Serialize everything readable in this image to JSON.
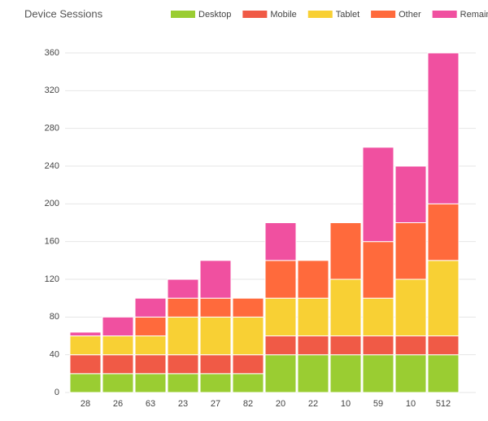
{
  "chart_data": {
    "type": "stacked-bar",
    "title": "Device Sessions",
    "categories": [
      "28",
      "26",
      "63",
      "23",
      "27",
      "82",
      "20",
      "22",
      "10",
      "59",
      "10",
      "512"
    ],
    "series": [
      {
        "name": "Desktop",
        "color": "#9acd32",
        "values": [
          20,
          20,
          20,
          20,
          20,
          20,
          40,
          40,
          40,
          40,
          40,
          40
        ]
      },
      {
        "name": "Mobile",
        "color": "#f05a46",
        "values": [
          20,
          20,
          20,
          20,
          20,
          20,
          20,
          20,
          20,
          20,
          20,
          20
        ]
      },
      {
        "name": "Tablet",
        "color": "#f8d034",
        "values": [
          20,
          20,
          20,
          40,
          40,
          40,
          40,
          40,
          60,
          40,
          60,
          80
        ]
      },
      {
        "name": "Other",
        "color": "#ff6a3c",
        "values": [
          0,
          0,
          20,
          20,
          20,
          20,
          40,
          40,
          60,
          60,
          60,
          60
        ]
      },
      {
        "name": "Remaining",
        "color": "#f050a0",
        "values": [
          4,
          20,
          20,
          20,
          40,
          0,
          40,
          0,
          0,
          100,
          60,
          160
        ]
      }
    ],
    "ylim": [
      0,
      360
    ],
    "yticks": [
      0,
      40,
      80,
      120,
      160,
      200,
      240,
      280,
      320,
      360
    ],
    "grid": true
  }
}
